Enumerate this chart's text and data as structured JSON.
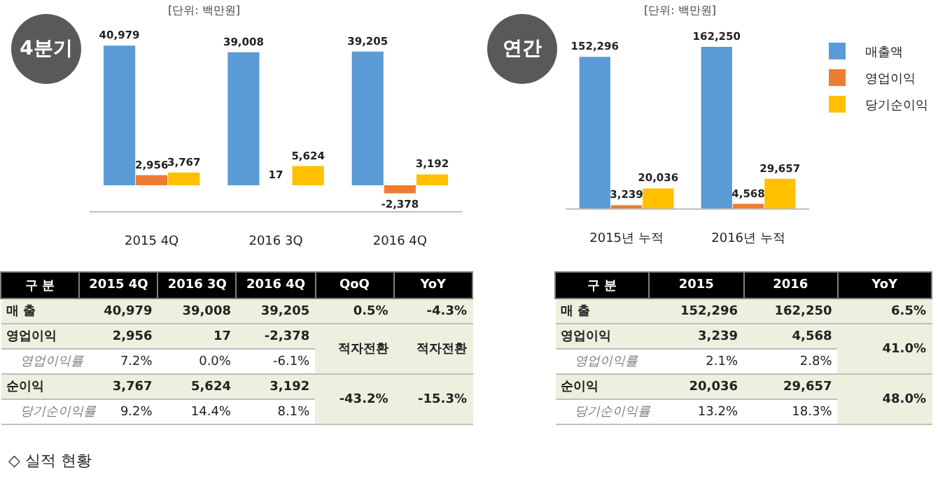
{
  "chart_data": [
    {
      "type": "bar",
      "title": "4분기",
      "subtitle": "[단위: 백만원]",
      "categories": [
        "2015 4Q",
        "2016 3Q",
        "2016 4Q"
      ],
      "legend": false,
      "series": [
        {
          "color": "#5b9bd5",
          "values": [
            40979,
            39008,
            39205
          ],
          "value_labels": [
            "40,979",
            "39,008",
            "39,205"
          ]
        },
        {
          "color": "#ed7d31",
          "values": [
            2956,
            17,
            -2378
          ],
          "value_labels": [
            "2,956",
            "17",
            "-2,378"
          ]
        },
        {
          "color": "#ffc000",
          "values": [
            3767,
            5624,
            3192
          ],
          "value_labels": [
            "3,767",
            "5,624",
            "3,192"
          ]
        }
      ]
    },
    {
      "type": "bar",
      "title": "연간",
      "subtitle": "[단위: 백만원]",
      "categories": [
        "2015년 누적",
        "2016년 누적"
      ],
      "legend": "right",
      "series": [
        {
          "name": "매출액",
          "color": "#5b9bd5",
          "values": [
            152296,
            162250
          ],
          "value_labels": [
            "152,296",
            "162,250"
          ]
        },
        {
          "name": "영업이익",
          "color": "#ed7d31",
          "values": [
            3239,
            4568
          ],
          "value_labels": [
            "3,239",
            "4,568"
          ]
        },
        {
          "name": "당기순이익",
          "color": "#ffc000",
          "values": [
            20036,
            29657
          ],
          "value_labels": [
            "20,036",
            "29,657"
          ]
        }
      ]
    },
    {
      "type": "other",
      "categories": [
        "구 분",
        "2015 4Q",
        "2016 3Q",
        "2016 4Q",
        "QoQ",
        "YoY"
      ],
      "cell_labels": [
        [
          "매 출",
          "40,979",
          "39,008",
          "39,205",
          "0.5%",
          "-4.3%"
        ],
        [
          "영업이익",
          "2,956",
          "17",
          "-2,378",
          "적자전환",
          "적자전환"
        ],
        [
          "영업이익률",
          "7.2%",
          "0.0%",
          "-6.1%",
          null,
          null
        ],
        [
          "순이익",
          "3,767",
          "5,624",
          "3,192",
          "-43.2%",
          "-15.3%"
        ],
        [
          "당기순이익률",
          "9.2%",
          "14.4%",
          "8.1%",
          null,
          null
        ]
      ],
      "annotations": [
        "◇ 실적 현황"
      ]
    },
    {
      "type": "other",
      "categories": [
        "구 분",
        "2015",
        "2016",
        "YoY"
      ],
      "cell_labels": [
        [
          "매 출",
          "152,296",
          "162,250",
          "6.5%"
        ],
        [
          "영업이익",
          "3,239",
          "4,568",
          "41.0%"
        ],
        [
          "영업이익률",
          "2.1%",
          "2.8%",
          null
        ],
        [
          "순이익",
          "20,036",
          "29,657",
          "48.0%"
        ],
        [
          "당기순이익률",
          "13.2%",
          "18.3%",
          null
        ]
      ]
    }
  ]
}
